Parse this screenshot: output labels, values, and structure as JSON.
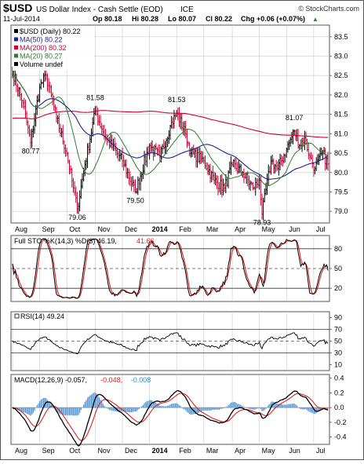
{
  "header": {
    "symbol": "$USD",
    "name": "US Dollar Index - Cash Settle (EOD)",
    "exchange": "ICE",
    "watermark": "© StockCharts.com",
    "date": "11-Jul-2014",
    "op": "Op 80.18",
    "hi": "Hi 80.28",
    "lo": "Lo 80.07",
    "cl": "Cl 80.22",
    "chg": "Chg +0.06 (+0.07%)",
    "chg_arrow": "▲"
  },
  "colors": {
    "price": "#000000",
    "up_bar": "#000000",
    "down_bar": "#cc0033",
    "ma50": "#1f1f8f",
    "ma200": "#cc0033",
    "ma20": "#2e7d2e",
    "sto_k": "#000000",
    "sto_d": "#e02020",
    "rsi": "#000000",
    "macd": "#000000",
    "signal": "#e02020",
    "hist": "#5b9bd5",
    "grid": "#c8c8c8"
  },
  "x_axis": {
    "labels": [
      "Aug",
      "Sep",
      "Oct",
      "Nov",
      "Dec",
      "2014",
      "Feb",
      "Mar",
      "Apr",
      "May",
      "Jun",
      "Jul"
    ],
    "positions": [
      0,
      21,
      42,
      64,
      85,
      106,
      127,
      148,
      170,
      191,
      212,
      233
    ],
    "bold": "2014",
    "total_bars": 245
  },
  "chart_data": [
    {
      "type": "line",
      "name": "price",
      "legend": [
        {
          "label": "$USD (Daily) 80.22",
          "color": "#000000"
        },
        {
          "label": "MA(50) 80.22",
          "color": "#1f1f8f"
        },
        {
          "label": "MA(200) 80.32",
          "color": "#cc0033"
        },
        {
          "label": "MA(20) 80.27",
          "color": "#2e7d2e"
        },
        {
          "label": "Volume undef",
          "color": "#000000"
        }
      ],
      "ylim": [
        78.7,
        83.8
      ],
      "yticks": [
        79.0,
        79.5,
        80.0,
        80.5,
        81.0,
        81.5,
        82.0,
        82.5,
        83.0,
        83.5
      ],
      "anchors": {
        "x": [
          0,
          8,
          14,
          21,
          26,
          34,
          42,
          47,
          50,
          56,
          64,
          72,
          85,
          95,
          106,
          114,
          122,
          127,
          134,
          138,
          148,
          156,
          164,
          170,
          178,
          186,
          191,
          193,
          200,
          205,
          212,
          218,
          222,
          226,
          230,
          234,
          240,
          244
        ],
        "y": [
          82.6,
          81.8,
          80.77,
          82.2,
          82.5,
          81.4,
          80.5,
          79.6,
          79.06,
          80.2,
          81.58,
          80.9,
          80.3,
          79.5,
          80.7,
          80.4,
          81.2,
          81.53,
          81.0,
          80.5,
          80.3,
          79.8,
          79.6,
          80.2,
          80.0,
          79.6,
          79.8,
          78.93,
          80.3,
          80.1,
          80.6,
          81.07,
          80.7,
          80.9,
          80.4,
          80.1,
          80.5,
          80.22
        ]
      },
      "annotations": [
        {
          "text": "80.77",
          "x": 14,
          "y": 80.77,
          "pos": "below"
        },
        {
          "text": "81.58",
          "x": 64,
          "y": 81.58,
          "pos": "above"
        },
        {
          "text": "79.06",
          "x": 50,
          "y": 79.06,
          "pos": "below"
        },
        {
          "text": "79.50",
          "x": 95,
          "y": 79.5,
          "pos": "below"
        },
        {
          "text": "81.53",
          "x": 127,
          "y": 81.53,
          "pos": "above"
        },
        {
          "text": "78.93",
          "x": 193,
          "y": 78.93,
          "pos": "below"
        },
        {
          "text": "81.07",
          "x": 218,
          "y": 81.07,
          "pos": "above"
        }
      ]
    },
    {
      "type": "line",
      "name": "full_sto",
      "legend": [
        {
          "label": "Full STO %K(14,3) %D(3) 46.19,",
          "color": "#000000"
        },
        {
          "label": "41.66",
          "color": "#e02020"
        }
      ],
      "ylim": [
        0,
        100
      ],
      "yticks": [
        20,
        50,
        80
      ],
      "levels": [
        20,
        80
      ],
      "midline": 50
    },
    {
      "type": "line",
      "name": "rsi",
      "legend": [
        {
          "label": "RSI(14) 49.24",
          "color": "#000000"
        }
      ],
      "ylim": [
        0,
        100
      ],
      "yticks": [
        10,
        30,
        50,
        70,
        90
      ],
      "levels": [
        30,
        70
      ],
      "midline": 50
    },
    {
      "type": "line",
      "name": "macd",
      "legend": [
        {
          "label": "MACD(12,26,9) -0.057,",
          "color": "#000000"
        },
        {
          "label": "-0.048,",
          "color": "#e02020"
        },
        {
          "label": "-0.008",
          "color": "#2a8fbd"
        }
      ],
      "ylim": [
        -0.5,
        0.45
      ],
      "yticks": [
        -0.4,
        -0.2,
        0.0,
        0.2,
        0.4
      ]
    }
  ]
}
